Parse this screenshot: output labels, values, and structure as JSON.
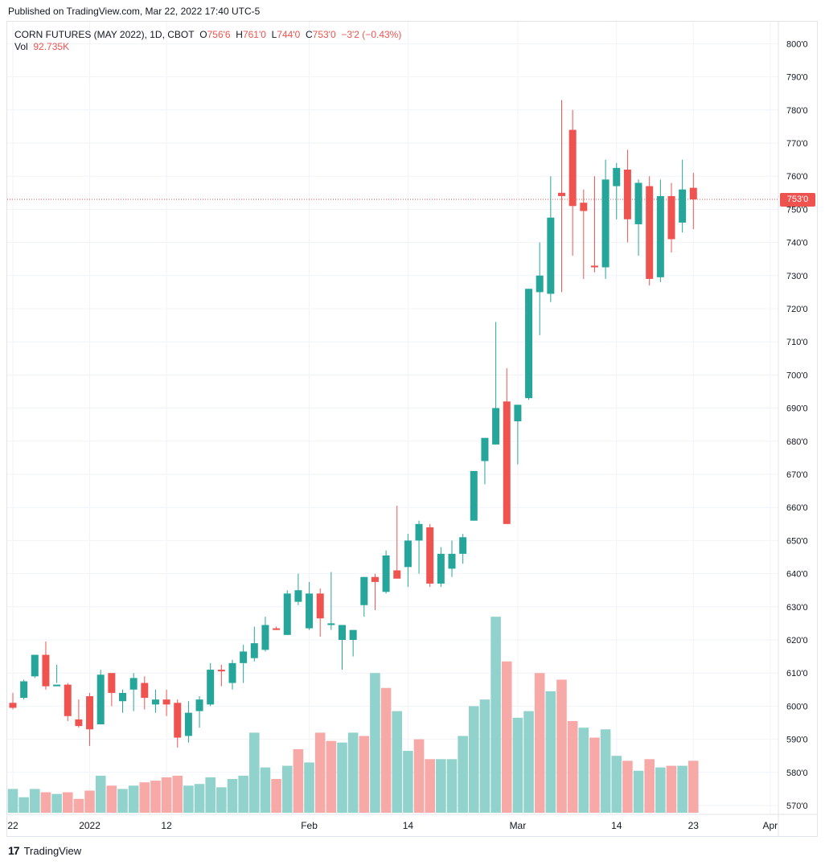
{
  "header": {
    "published": "Published on TradingView.com, Mar 22, 2022 17:40 UTC-5"
  },
  "legend": {
    "symbol": "CORN FUTURES (MAY 2022), 1D, CBOT",
    "o_label": "O",
    "o_value": "756'6",
    "h_label": "H",
    "h_value": "761'0",
    "l_label": "L",
    "l_value": "744'0",
    "c_label": "C",
    "c_value": "753'0",
    "change": "−3'2 (−0.43%)",
    "vol_label": "Vol",
    "vol_value": "92.735K"
  },
  "price_tag": "753'0",
  "brand": {
    "logo": "17",
    "name": "TradingView"
  },
  "colors": {
    "up": "#26a69a",
    "down": "#ef5350",
    "vol_up": "#92d2cc",
    "vol_down": "#f7a9a7",
    "grid": "#f0f3fa"
  },
  "chart_data": {
    "type": "candlestick",
    "title": "CORN FUTURES (MAY 2022), 1D, CBOT",
    "ylim": [
      567,
      805
    ],
    "y_ticks": [
      "800'0",
      "790'0",
      "780'0",
      "770'0",
      "760'0",
      "750'0",
      "740'0",
      "730'0",
      "720'0",
      "710'0",
      "700'0",
      "690'0",
      "680'0",
      "670'0",
      "660'0",
      "650'0",
      "640'0",
      "630'0",
      "620'0",
      "610'0",
      "600'0",
      "590'0",
      "580'0",
      "570'0"
    ],
    "y_tick_values": [
      800,
      790,
      780,
      770,
      760,
      750,
      740,
      730,
      720,
      710,
      700,
      690,
      680,
      670,
      660,
      650,
      640,
      630,
      620,
      610,
      600,
      590,
      580,
      570
    ],
    "x_ticks": [
      {
        "label": "22",
        "index": 0
      },
      {
        "label": "2022",
        "index": 7
      },
      {
        "label": "12",
        "index": 14
      },
      {
        "label": "Feb",
        "index": 27
      },
      {
        "label": "14",
        "index": 36
      },
      {
        "label": "Mar",
        "index": 46
      },
      {
        "label": "14",
        "index": 55
      },
      {
        "label": "23",
        "index": 62
      },
      {
        "label": "Apr",
        "index": 69
      }
    ],
    "last_price": 753,
    "candles": [
      [
        601,
        604,
        599,
        599.5
      ],
      [
        602.5,
        608,
        602,
        607.5
      ],
      [
        609,
        615,
        608.5,
        615.5
      ],
      [
        615.5,
        619.5,
        605,
        606
      ],
      [
        606,
        612.5,
        607,
        606.5
      ],
      [
        606.5,
        607,
        595.5,
        597
      ],
      [
        596,
        602,
        593.5,
        594
      ],
      [
        603,
        604,
        588,
        593
      ],
      [
        594.5,
        611,
        594.5,
        609.5
      ],
      [
        610,
        609.5,
        600,
        604
      ],
      [
        601.5,
        605,
        598,
        604
      ],
      [
        605,
        610,
        598.5,
        608.5
      ],
      [
        607,
        609,
        599,
        602.5
      ],
      [
        600.5,
        605,
        598,
        602
      ],
      [
        602,
        605,
        597,
        600.5
      ],
      [
        601,
        602,
        587.5,
        590.5
      ],
      [
        591,
        601.5,
        589,
        598
      ],
      [
        598.5,
        603,
        593.5,
        602
      ],
      [
        600.5,
        613,
        600,
        611
      ],
      [
        611,
        612.5,
        606,
        610.5
      ],
      [
        607,
        614,
        605,
        613
      ],
      [
        613,
        618.5,
        607,
        616.5
      ],
      [
        614.5,
        624,
        613.5,
        619
      ],
      [
        617,
        627,
        616.5,
        624.5
      ],
      [
        623.5,
        624,
        623,
        623
      ],
      [
        621.5,
        635,
        621.5,
        634
      ],
      [
        631.5,
        640,
        630.5,
        635
      ],
      [
        623.5,
        637.5,
        623,
        634
      ],
      [
        634,
        635.5,
        621,
        626.5
      ],
      [
        624.5,
        640.5,
        623,
        625
      ],
      [
        620,
        623,
        611,
        624.5
      ],
      [
        620,
        622,
        615,
        623
      ],
      [
        630.5,
        639,
        627,
        639
      ],
      [
        639,
        640,
        629,
        637.5
      ],
      [
        634.5,
        647,
        634,
        645.5
      ],
      [
        641,
        660.5,
        640,
        638.5
      ],
      [
        642,
        652,
        636,
        650
      ],
      [
        650,
        656,
        640,
        655
      ],
      [
        654,
        655,
        636,
        637
      ],
      [
        637,
        648,
        636,
        646
      ],
      [
        641.5,
        650,
        639,
        646
      ],
      [
        646,
        652,
        643,
        651
      ],
      [
        656,
        670,
        656,
        671
      ],
      [
        674,
        679,
        667,
        681
      ],
      [
        679,
        716,
        679,
        690
      ],
      [
        692,
        702,
        655,
        655
      ],
      [
        686,
        690.5,
        673,
        691
      ],
      [
        693,
        726,
        692.5,
        726
      ],
      [
        725,
        740,
        712,
        730
      ],
      [
        724.5,
        760,
        722,
        747.5
      ],
      [
        755,
        783,
        725,
        754
      ],
      [
        774,
        780,
        736,
        751
      ],
      [
        752,
        756,
        729,
        749.5
      ],
      [
        733,
        760,
        731,
        732.5
      ],
      [
        732.5,
        765,
        729,
        759
      ],
      [
        757,
        764,
        747,
        762.5
      ],
      [
        762,
        768,
        740,
        747
      ],
      [
        745.5,
        759,
        736,
        758
      ],
      [
        757,
        760,
        727,
        729
      ],
      [
        729.5,
        759,
        728,
        754
      ],
      [
        754,
        758,
        737,
        741
      ],
      [
        746,
        765,
        743,
        756
      ],
      [
        756.5,
        761,
        744,
        753
      ]
    ],
    "volumes": [
      {
        "v": 575,
        "up": true
      },
      {
        "v": 572.5,
        "up": true
      },
      {
        "v": 575,
        "up": true
      },
      {
        "v": 574,
        "up": false
      },
      {
        "v": 573.5,
        "up": true
      },
      {
        "v": 574,
        "up": false
      },
      {
        "v": 572,
        "up": false
      },
      {
        "v": 574.5,
        "up": false
      },
      {
        "v": 579,
        "up": true
      },
      {
        "v": 576,
        "up": false
      },
      {
        "v": 575,
        "up": true
      },
      {
        "v": 576,
        "up": true
      },
      {
        "v": 577,
        "up": false
      },
      {
        "v": 577.5,
        "up": false
      },
      {
        "v": 578.5,
        "up": false
      },
      {
        "v": 579,
        "up": false
      },
      {
        "v": 576,
        "up": true
      },
      {
        "v": 576.5,
        "up": true
      },
      {
        "v": 578.5,
        "up": true
      },
      {
        "v": 575.5,
        "up": true
      },
      {
        "v": 578,
        "up": true
      },
      {
        "v": 579,
        "up": true
      },
      {
        "v": 592,
        "up": true
      },
      {
        "v": 581.5,
        "up": true
      },
      {
        "v": 578,
        "up": false
      },
      {
        "v": 582,
        "up": true
      },
      {
        "v": 587,
        "up": false
      },
      {
        "v": 583,
        "up": true
      },
      {
        "v": 592,
        "up": false
      },
      {
        "v": 589.5,
        "up": false
      },
      {
        "v": 589,
        "up": true
      },
      {
        "v": 592,
        "up": true
      },
      {
        "v": 591,
        "up": false
      },
      {
        "v": 610,
        "up": true
      },
      {
        "v": 605.5,
        "up": false
      },
      {
        "v": 598.5,
        "up": true
      },
      {
        "v": 586.5,
        "up": true
      },
      {
        "v": 590,
        "up": false
      },
      {
        "v": 584,
        "up": false
      },
      {
        "v": 584,
        "up": true
      },
      {
        "v": 584,
        "up": true
      },
      {
        "v": 591,
        "up": true
      },
      {
        "v": 600,
        "up": true
      },
      {
        "v": 602,
        "up": true
      },
      {
        "v": 627,
        "up": true
      },
      {
        "v": 613.5,
        "up": false
      },
      {
        "v": 596.5,
        "up": true
      },
      {
        "v": 598.5,
        "up": true
      },
      {
        "v": 610,
        "up": false
      },
      {
        "v": 604.5,
        "up": true
      },
      {
        "v": 608,
        "up": false
      },
      {
        "v": 595.5,
        "up": false
      },
      {
        "v": 593.5,
        "up": true
      },
      {
        "v": 590.5,
        "up": false
      },
      {
        "v": 593,
        "up": true
      },
      {
        "v": 585,
        "up": true
      },
      {
        "v": 583.5,
        "up": false
      },
      {
        "v": 580.5,
        "up": true
      },
      {
        "v": 584,
        "up": false
      },
      {
        "v": 581.5,
        "up": true
      },
      {
        "v": 582,
        "up": false
      },
      {
        "v": 582,
        "up": true
      },
      {
        "v": 583.5,
        "up": false
      }
    ]
  }
}
